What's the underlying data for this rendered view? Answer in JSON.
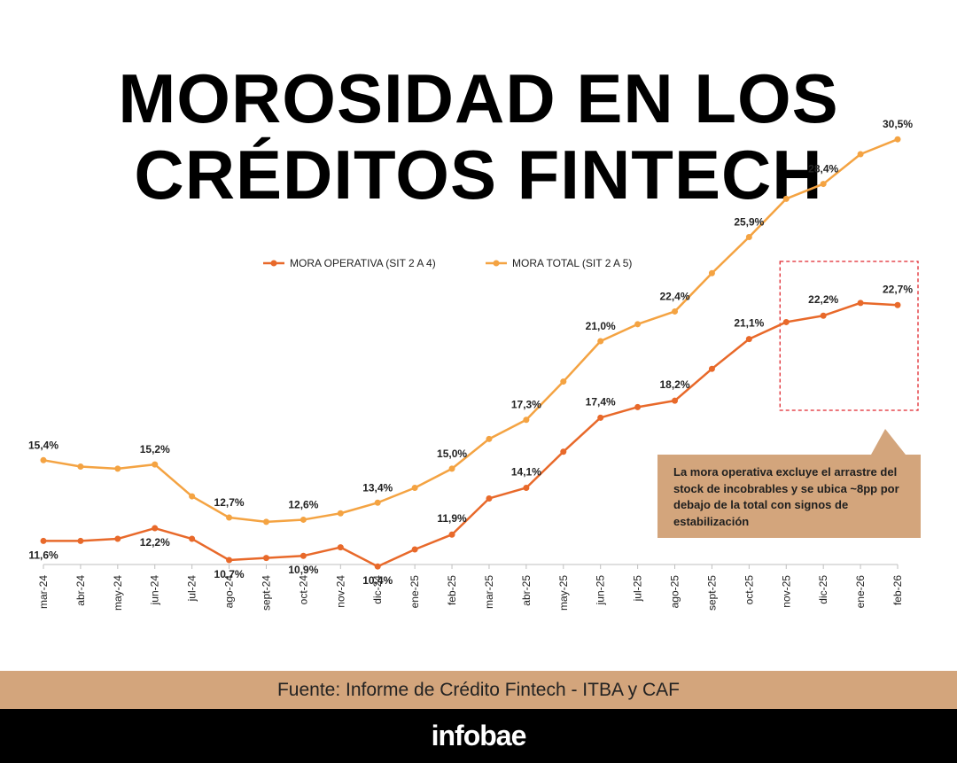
{
  "title": {
    "line1": "MOROSIDAD EN LOS",
    "line2": "CRÉDITOS FINTECH"
  },
  "callout_text": "La mora operativa excluye el arrastre del stock de incobrables y se ubica ~8pp por debajo de la total con signos de estabilización",
  "source": "Fuente: Informe de Crédito Fintech - ITBA y CAF",
  "logo": "infobae",
  "colors": {
    "operativa": "#e8692a",
    "total": "#f4a342",
    "highlight_box": "#e0262d",
    "callout": "#d3a57c",
    "axis": "#bfbfbf"
  },
  "chart_data": {
    "type": "line",
    "categories": [
      "mar-24",
      "abr-24",
      "may-24",
      "jun-24",
      "jul-24",
      "ago-24",
      "sept-24",
      "oct-24",
      "nov-24",
      "dic-24",
      "ene-25",
      "feb-25",
      "mar-25",
      "abr-25",
      "may-25",
      "jun-25",
      "jul-25",
      "ago-25",
      "sept-25",
      "oct-25",
      "nov-25",
      "dic-25",
      "ene-26",
      "feb-26"
    ],
    "series": [
      {
        "name": "MORA OPERATIVA (SIT 2 A 4)",
        "color": "#e8692a",
        "values": [
          11.6,
          11.6,
          11.7,
          12.2,
          11.7,
          10.7,
          10.8,
          10.9,
          11.3,
          10.4,
          11.2,
          11.9,
          13.6,
          14.1,
          15.8,
          17.4,
          17.9,
          18.2,
          19.7,
          21.1,
          21.9,
          22.2,
          22.8,
          22.7
        ],
        "labels": {
          "0": "11,6%",
          "3": "12,2%",
          "5": "10,7%",
          "7": "10,9%",
          "9": "10,4%",
          "11": "11,9%",
          "13": "14,1%",
          "15": "17,4%",
          "17": "18,2%",
          "19": "21,1%",
          "21": "22,2%",
          "23": "22,7%"
        }
      },
      {
        "name": "MORA TOTAL (SIT 2 A 5)",
        "color": "#f4a342",
        "values": [
          15.4,
          15.1,
          15.0,
          15.2,
          13.7,
          12.7,
          12.5,
          12.6,
          12.9,
          13.4,
          14.1,
          15.0,
          16.4,
          17.3,
          19.1,
          21.0,
          21.8,
          22.4,
          24.2,
          25.9,
          27.7,
          28.4,
          29.8,
          30.5
        ],
        "labels": {
          "0": "15,4%",
          "3": "15,2%",
          "5": "12,7%",
          "7": "12,6%",
          "9": "13,4%",
          "11": "15,0%",
          "13": "17,3%",
          "15": "21,0%",
          "17": "22,4%",
          "19": "25,9%",
          "21": "28,4%",
          "23": "30,5%"
        }
      }
    ],
    "highlight_range": [
      "nov-25",
      "feb-26"
    ],
    "legend_position": "top-center",
    "grid": false
  }
}
